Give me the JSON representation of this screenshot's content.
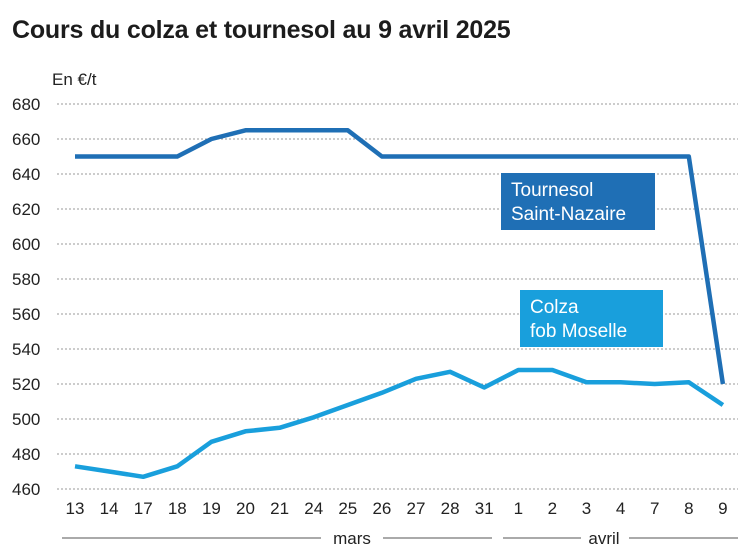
{
  "chart_data": {
    "type": "line",
    "title": "Cours du colza et tournesol au 9 avril 2025",
    "ylabel": "En €/t",
    "ylim": [
      460,
      680
    ],
    "yticks": [
      460,
      480,
      500,
      520,
      540,
      560,
      580,
      600,
      620,
      640,
      660,
      680
    ],
    "grid": "horizontal-dashed",
    "categories": [
      "13",
      "14",
      "17",
      "18",
      "19",
      "20",
      "21",
      "24",
      "25",
      "26",
      "27",
      "28",
      "31",
      "1",
      "2",
      "3",
      "4",
      "7",
      "8",
      "9"
    ],
    "month_labels": [
      {
        "label": "mars",
        "from": 0,
        "to": 12
      },
      {
        "label": "avril",
        "from": 13,
        "to": 19
      }
    ],
    "series": [
      {
        "name": "Tournesol Saint-Nazaire",
        "label_lines": [
          "Tournesol",
          "Saint-Nazaire"
        ],
        "color": "#1f6fb5",
        "values": [
          650,
          650,
          650,
          650,
          660,
          665,
          665,
          665,
          665,
          650,
          650,
          650,
          650,
          650,
          650,
          650,
          650,
          650,
          650,
          520
        ]
      },
      {
        "name": "Colza fob Moselle",
        "label_lines": [
          "Colza",
          "fob Moselle"
        ],
        "color": "#199fdc",
        "values": [
          473,
          470,
          467,
          473,
          487,
          493,
          495,
          501,
          508,
          515,
          523,
          527,
          518,
          528,
          528,
          521,
          521,
          520,
          521,
          508
        ]
      }
    ]
  }
}
